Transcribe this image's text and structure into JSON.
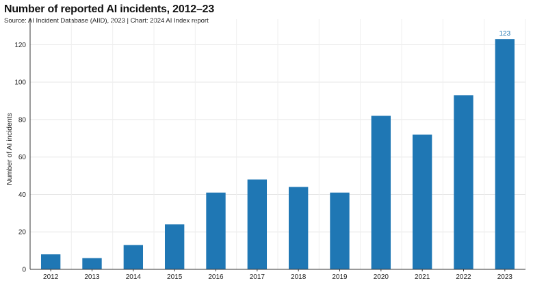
{
  "chart_data": {
    "type": "bar",
    "title": "Number of reported AI incidents, 2012–23",
    "subtitle": "Source: AI Incident Database (AIID), 2023 | Chart: 2024 AI Index report",
    "xlabel": "",
    "ylabel": "Number of AI incidents",
    "categories": [
      "2012",
      "2013",
      "2014",
      "2015",
      "2016",
      "2017",
      "2018",
      "2019",
      "2020",
      "2021",
      "2022",
      "2023"
    ],
    "values": [
      8,
      6,
      13,
      24,
      41,
      48,
      44,
      41,
      82,
      72,
      93,
      123
    ],
    "data_labels": [
      {
        "category": "2023",
        "text": "123"
      }
    ],
    "yticks": [
      0,
      20,
      40,
      60,
      80,
      100,
      120
    ],
    "ylim": [
      0,
      130
    ],
    "grid": true,
    "bar_color": "#1f77b4"
  }
}
